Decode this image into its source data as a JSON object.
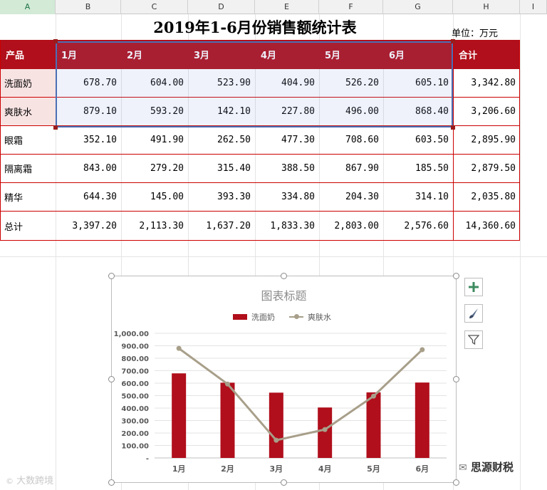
{
  "columns": [
    "A",
    "B",
    "C",
    "D",
    "E",
    "F",
    "G",
    "H",
    "I"
  ],
  "sheet": {
    "title": "2019年1-6月份销售额统计表",
    "unit": "单位：万元",
    "header": [
      "产品",
      "1月",
      "2月",
      "3月",
      "4月",
      "5月",
      "6月",
      "合计"
    ],
    "rows": [
      {
        "product": "洗面奶",
        "values": [
          "678.70",
          "604.00",
          "523.90",
          "404.90",
          "526.20",
          "605.10"
        ],
        "total": "3,342.80"
      },
      {
        "product": "爽肤水",
        "values": [
          "879.10",
          "593.20",
          "142.10",
          "227.80",
          "496.00",
          "868.40"
        ],
        "total": "3,206.60"
      },
      {
        "product": "眼霜",
        "values": [
          "352.10",
          "491.90",
          "262.50",
          "477.30",
          "708.60",
          "603.50"
        ],
        "total": "2,895.90"
      },
      {
        "product": "隔离霜",
        "values": [
          "843.00",
          "279.20",
          "315.40",
          "388.50",
          "867.90",
          "185.50"
        ],
        "total": "2,879.50"
      },
      {
        "product": "精华",
        "values": [
          "644.30",
          "145.00",
          "393.30",
          "334.80",
          "204.30",
          "314.10"
        ],
        "total": "2,035.80"
      },
      {
        "product": "总计",
        "values": [
          "3,397.20",
          "2,113.30",
          "1,637.20",
          "1,833.30",
          "2,803.00",
          "2,576.60"
        ],
        "total": "14,360.60"
      }
    ]
  },
  "chart_data": {
    "type": "bar",
    "title": "图表标题",
    "categories": [
      "1月",
      "2月",
      "3月",
      "4月",
      "5月",
      "6月"
    ],
    "series": [
      {
        "name": "洗面奶",
        "type": "bar",
        "color": "#b00f1b",
        "values": [
          678.7,
          604.0,
          523.9,
          404.9,
          526.2,
          605.1
        ]
      },
      {
        "name": "爽肤水",
        "type": "line",
        "color": "#a89f8a",
        "values": [
          879.1,
          593.2,
          142.1,
          227.8,
          496.0,
          868.4
        ]
      }
    ],
    "yticks": [
      "-",
      "100.00",
      "200.00",
      "300.00",
      "400.00",
      "500.00",
      "600.00",
      "700.00",
      "800.00",
      "900.00",
      "1,000.00"
    ],
    "ylim": [
      0,
      1000
    ],
    "legend": "top",
    "grid": true
  },
  "chart_tools": {
    "add": "plus-icon",
    "style": "brush-icon",
    "filter": "filter-icon"
  },
  "watermarks": {
    "left": "大数跨境",
    "right": "思源财税"
  }
}
